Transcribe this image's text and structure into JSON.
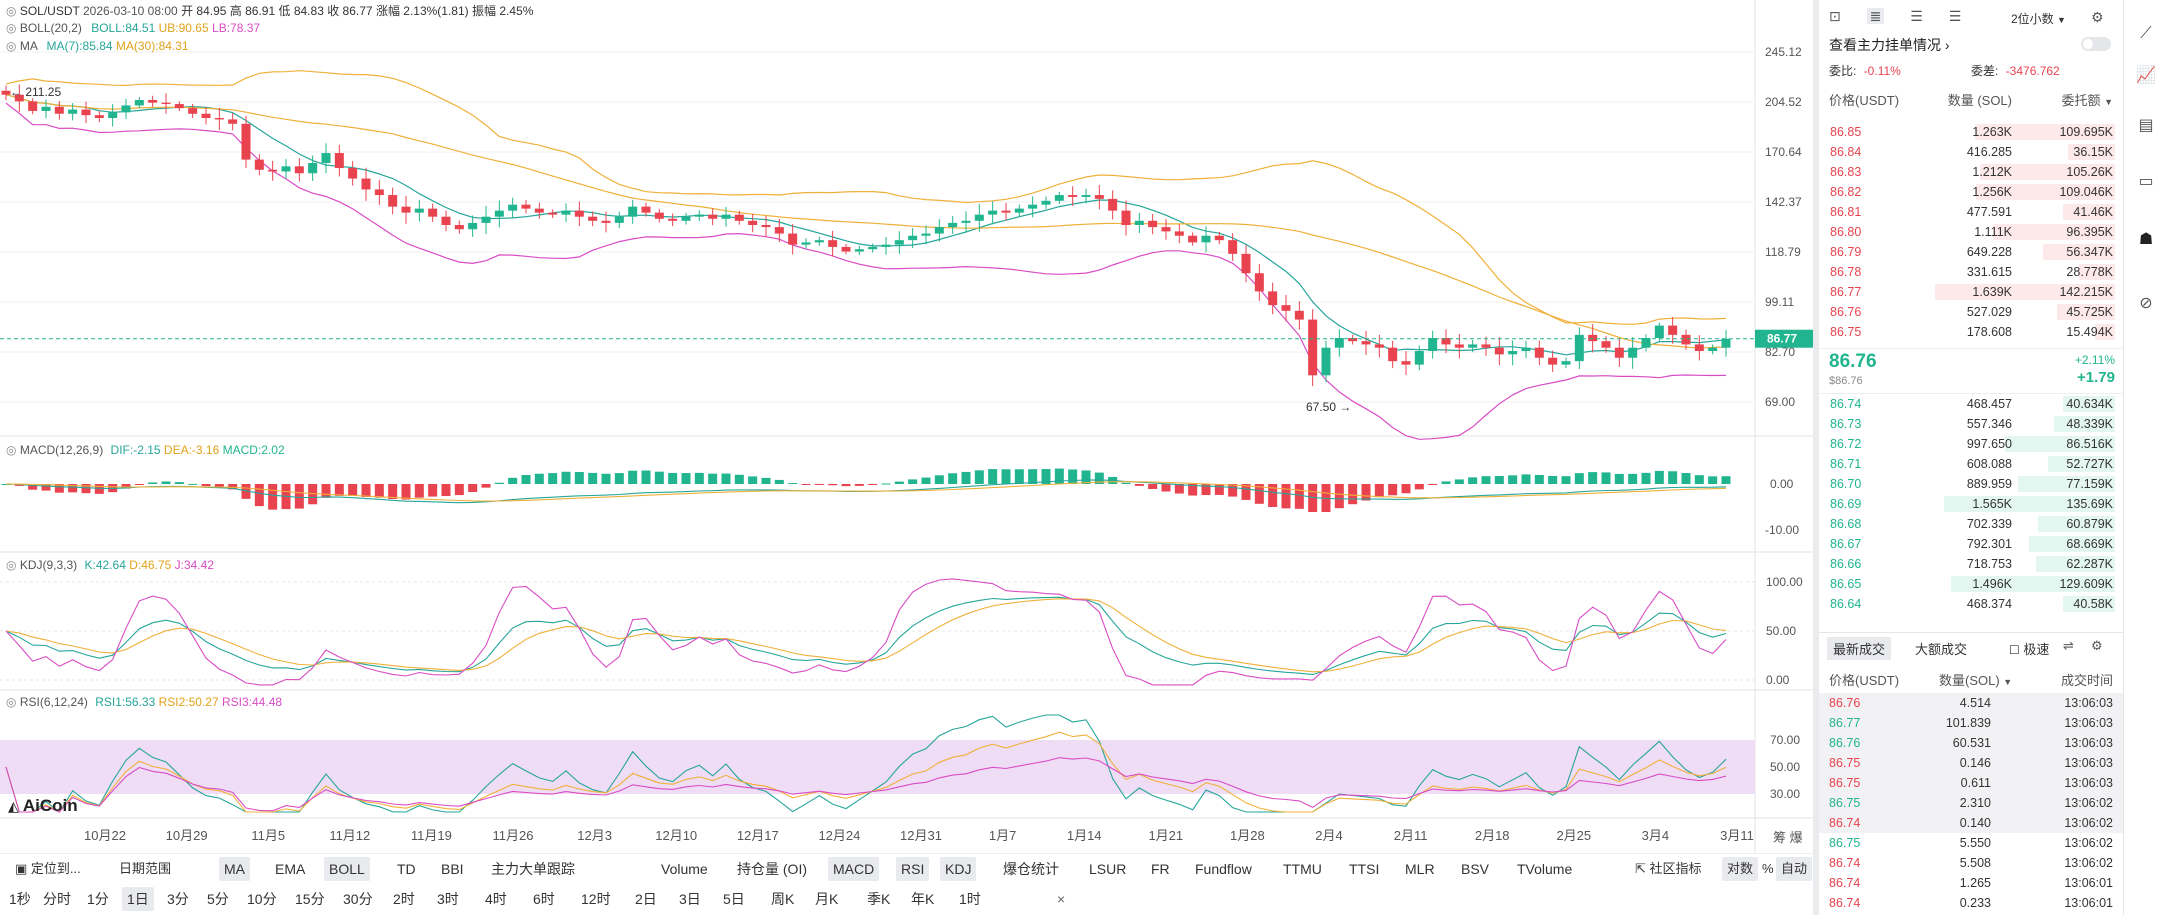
{
  "symbol_info": {
    "pair": "SOL/USDT",
    "datetime": "2026-03-10 08:00",
    "open": "开 84.95",
    "high": "高 86.91",
    "low": "低 84.83",
    "close": "收 86.77",
    "change": "涨幅 2.13%(1.81)",
    "amplitude": "振幅 2.45%"
  },
  "boll_legend": {
    "name": "BOLL(20,2)",
    "boll": "BOLL:84.51",
    "ub": "UB:90.65",
    "lb": "LB:78.37"
  },
  "ma_legend": {
    "name": "MA",
    "ma7": "MA(7):85.84",
    "ma30": "MA(30):84.31"
  },
  "macd_legend": {
    "name": "MACD(12,26,9)",
    "dif": "DIF:-2.15",
    "dea": "DEA:-3.16",
    "macd": "MACD:2.02"
  },
  "kdj_legend": {
    "name": "KDJ(9,3,3)",
    "k": "K:42.64",
    "d": "D:46.75",
    "j": "J:34.42"
  },
  "rsi_legend": {
    "name": "RSI(6,12,24)",
    "rsi1": "RSI1:56.33",
    "rsi2": "RSI2:50.27",
    "rsi3": "RSI3:44.48"
  },
  "main_axis": [
    "245.12",
    "204.52",
    "170.64",
    "142.37",
    "118.79",
    "99.11",
    "82.70",
    "69.00"
  ],
  "current_price_tag": "86.77",
  "high_mark": "211.25",
  "low_mark": "67.50",
  "macd_axis": [
    "0.00",
    "-10.00"
  ],
  "kdj_axis": [
    "100.00",
    "50.00",
    "0.00"
  ],
  "rsi_axis": [
    "70.00",
    "50.00",
    "30.00"
  ],
  "x_axis": [
    "10月22",
    "10月29",
    "11月5",
    "11月12",
    "11月19",
    "11月26",
    "12月3",
    "12月10",
    "12月17",
    "12月24",
    "12月31",
    "1月7",
    "1月14",
    "1月21",
    "1月28",
    "2月4",
    "2月11",
    "2月18",
    "2月25",
    "3月4",
    "3月11"
  ],
  "axis_corner": "筹 爆",
  "logo": "AiCoin",
  "toolbar1": {
    "locate": "定位到...",
    "date_range": "日期范围",
    "indicators": [
      "MA",
      "EMA",
      "BOLL",
      "TD",
      "BBI",
      "主力大单跟踪"
    ],
    "sub_indicators": [
      "Volume",
      "持仓量 (OI)",
      "MACD",
      "RSI",
      "KDJ",
      "爆仓统计",
      "LSUR",
      "FR",
      "Fundflow",
      "TTMU",
      "TTSI",
      "MLR",
      "BSV",
      "TVolume"
    ],
    "community": "社区指标",
    "log": "对数",
    "percent": "%",
    "auto": "自动"
  },
  "toolbar2": {
    "intervals": [
      "1秒",
      "分时",
      "1分",
      "1日",
      "3分",
      "5分",
      "10分",
      "15分",
      "30分",
      "2时",
      "3时",
      "4时",
      "6时",
      "12时",
      "2日",
      "3日",
      "5日",
      "周K",
      "月K",
      "季K",
      "年K",
      "1时"
    ],
    "active": "1日",
    "close": "×"
  },
  "orderbook": {
    "precision": "2位小数",
    "main_orders": "查看主力挂单情况",
    "ratio_label": "委比:",
    "ratio_value": "-0.11%",
    "diff_label": "委差:",
    "diff_value": "-3476.762",
    "col_price": "价格(USDT)",
    "col_qty": "数量 (SOL)",
    "col_total": "委托额",
    "asks": [
      {
        "price": "86.85",
        "qty": "1.263K",
        "total": "109.695K",
        "fill": 0.78
      },
      {
        "price": "86.84",
        "qty": "416.285",
        "total": "36.15K",
        "fill": 0.26
      },
      {
        "price": "86.83",
        "qty": "1.212K",
        "total": "105.26K",
        "fill": 0.75
      },
      {
        "price": "86.82",
        "qty": "1.256K",
        "total": "109.046K",
        "fill": 0.77
      },
      {
        "price": "86.81",
        "qty": "477.591",
        "total": "41.46K",
        "fill": 0.29
      },
      {
        "price": "86.80",
        "qty": "1.111K",
        "total": "96.395K",
        "fill": 0.68
      },
      {
        "price": "86.79",
        "qty": "649.228",
        "total": "56.347K",
        "fill": 0.4
      },
      {
        "price": "86.78",
        "qty": "331.615",
        "total": "28.778K",
        "fill": 0.2
      },
      {
        "price": "86.77",
        "qty": "1.639K",
        "total": "142.215K",
        "fill": 1.0
      },
      {
        "price": "86.76",
        "qty": "527.029",
        "total": "45.725K",
        "fill": 0.32
      },
      {
        "price": "86.75",
        "qty": "178.608",
        "total": "15.494K",
        "fill": 0.11
      }
    ],
    "last_price": "86.76",
    "last_price_usd": "$86.76",
    "change_pct": "+2.11%",
    "change_abs": "+1.79",
    "bids": [
      {
        "price": "86.74",
        "qty": "468.457",
        "total": "40.634K",
        "fill": 0.29
      },
      {
        "price": "86.73",
        "qty": "557.346",
        "total": "48.339K",
        "fill": 0.34
      },
      {
        "price": "86.72",
        "qty": "997.650",
        "total": "86.516K",
        "fill": 0.61
      },
      {
        "price": "86.71",
        "qty": "608.088",
        "total": "52.727K",
        "fill": 0.37
      },
      {
        "price": "86.70",
        "qty": "889.959",
        "total": "77.159K",
        "fill": 0.54
      },
      {
        "price": "86.69",
        "qty": "1.565K",
        "total": "135.69K",
        "fill": 0.95
      },
      {
        "price": "86.68",
        "qty": "702.339",
        "total": "60.879K",
        "fill": 0.43
      },
      {
        "price": "86.67",
        "qty": "792.301",
        "total": "68.669K",
        "fill": 0.48
      },
      {
        "price": "86.66",
        "qty": "718.753",
        "total": "62.287K",
        "fill": 0.44
      },
      {
        "price": "86.65",
        "qty": "1.496K",
        "total": "129.609K",
        "fill": 0.91
      },
      {
        "price": "86.64",
        "qty": "468.374",
        "total": "40.58K",
        "fill": 0.29
      }
    ]
  },
  "trades": {
    "tab_latest": "最新成交",
    "tab_large": "大额成交",
    "fast_label": "极速",
    "col_price": "价格(USDT)",
    "col_qty": "数量(SOL)",
    "col_time": "成交时间",
    "rows": [
      {
        "price": "86.76",
        "qty": "4.514",
        "time": "13:06:03",
        "side": "sell"
      },
      {
        "price": "86.77",
        "qty": "101.839",
        "time": "13:06:03",
        "side": "buy"
      },
      {
        "price": "86.76",
        "qty": "60.531",
        "time": "13:06:03",
        "side": "buy"
      },
      {
        "price": "86.75",
        "qty": "0.146",
        "time": "13:06:03",
        "side": "sell"
      },
      {
        "price": "86.75",
        "qty": "0.611",
        "time": "13:06:03",
        "side": "sell"
      },
      {
        "price": "86.75",
        "qty": "2.310",
        "time": "13:06:02",
        "side": "buy"
      },
      {
        "price": "86.74",
        "qty": "0.140",
        "time": "13:06:02",
        "side": "sell"
      },
      {
        "price": "86.75",
        "qty": "5.550",
        "time": "13:06:02",
        "side": "buy"
      },
      {
        "price": "86.74",
        "qty": "5.508",
        "time": "13:06:02",
        "side": "sell"
      },
      {
        "price": "86.74",
        "qty": "1.265",
        "time": "13:06:01",
        "side": "sell"
      },
      {
        "price": "86.74",
        "qty": "0.233",
        "time": "13:06:01",
        "side": "sell"
      }
    ]
  },
  "colors": {
    "up": "#20b58e",
    "down": "#e8434f",
    "boll_mid": "#26a69a",
    "boll_upper": "#f0b03a",
    "boll_lower": "#d94cc5",
    "ma7": "#26a69a",
    "ma30": "#f0b03a"
  },
  "chart_data": {
    "type": "candlestick",
    "price_axis_ticks": [
      245.12,
      204.52,
      170.64,
      142.37,
      118.79,
      99.11,
      82.7,
      69.0
    ],
    "closes": [
      210,
      205,
      198,
      201,
      196,
      199,
      195,
      193,
      197,
      202,
      206,
      204,
      203,
      200,
      196,
      193,
      192,
      189,
      166,
      160,
      159,
      162,
      158,
      164,
      170,
      161,
      155,
      149,
      146,
      140,
      137,
      139,
      135,
      131,
      129,
      132,
      135,
      138,
      141,
      139,
      137,
      136,
      138,
      135,
      133,
      132,
      135,
      140,
      137,
      134,
      133,
      135,
      136,
      134,
      136,
      133,
      131,
      130,
      127,
      122,
      123,
      124,
      121,
      119,
      120,
      121,
      122,
      124,
      126,
      127,
      130,
      132,
      133,
      136,
      138,
      137,
      139,
      141,
      143,
      146,
      145,
      146,
      144,
      138,
      131,
      133,
      130,
      128,
      126,
      123,
      126,
      124,
      118,
      110,
      103,
      98,
      96,
      93,
      76,
      84,
      87,
      86,
      85,
      84,
      80,
      79,
      83,
      87,
      85,
      84,
      85,
      84,
      82,
      83,
      84,
      81,
      79,
      80,
      88,
      86,
      84,
      81,
      84,
      87,
      91,
      88,
      85,
      83,
      84,
      86.77
    ]
  }
}
